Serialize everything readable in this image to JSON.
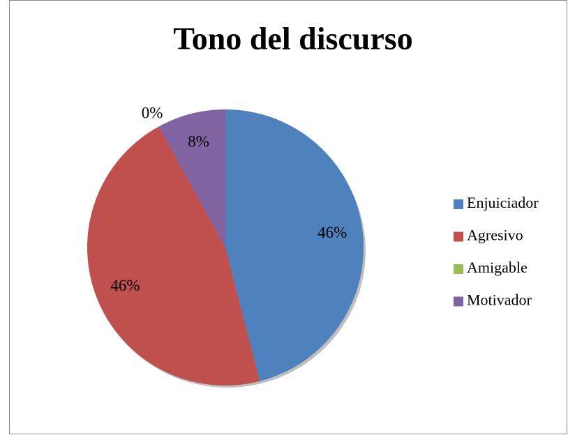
{
  "chart_data": {
    "type": "pie",
    "title": "Tono del discurso",
    "categories": [
      "Enjuiciador",
      "Agresivo",
      "Amigable",
      "Motivador"
    ],
    "values": [
      46,
      46,
      0,
      8
    ],
    "value_labels": [
      "46%",
      "46%",
      "0%",
      "8%"
    ],
    "colors": [
      "#4f81bd",
      "#c0504d",
      "#9bbb59",
      "#8064a2"
    ],
    "legend": "right"
  }
}
